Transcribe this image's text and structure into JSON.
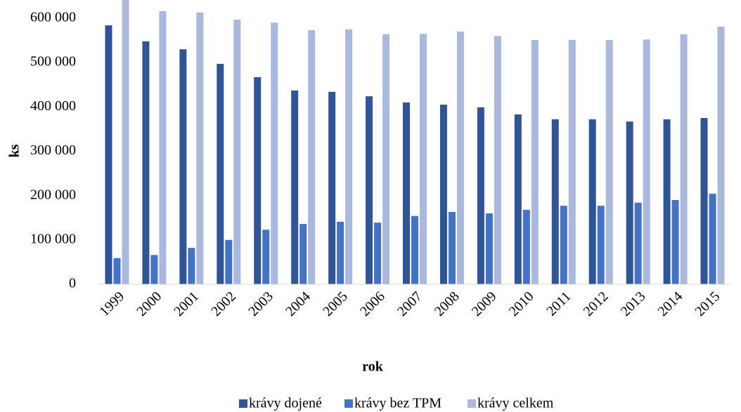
{
  "chart_data": {
    "type": "bar",
    "categories": [
      "1999",
      "2000",
      "2001",
      "2002",
      "2003",
      "2004",
      "2005",
      "2006",
      "2007",
      "2008",
      "2009",
      "2010",
      "2011",
      "2012",
      "2013",
      "2014",
      "2015"
    ],
    "series": [
      {
        "name": "krávy dojené",
        "color": "#2f5597",
        "values": [
          584000,
          548000,
          530000,
          497000,
          467000,
          437000,
          434000,
          424000,
          410000,
          405000,
          399000,
          383000,
          372000,
          372000,
          367000,
          372000,
          375000
        ]
      },
      {
        "name": "krávy bez TPM",
        "color": "#4472c4",
        "values": [
          59000,
          66000,
          82000,
          100000,
          123000,
          136000,
          141000,
          139000,
          154000,
          163000,
          160000,
          168000,
          177000,
          177000,
          184000,
          190000,
          204000
        ]
      },
      {
        "name": "krávy celkem",
        "color": "#a9b8dc",
        "values": [
          645000,
          616000,
          613000,
          597000,
          590000,
          573000,
          575000,
          564000,
          565000,
          570000,
          560000,
          551000,
          551000,
          551000,
          552000,
          564000,
          581000
        ]
      }
    ],
    "ylim": [
      0,
      700000
    ],
    "yticks": [
      0,
      {
        "value": 100000,
        "label": "100 000"
      },
      {
        "value": 200000,
        "label": "200 000"
      },
      {
        "value": 300000,
        "label": "300 000"
      },
      {
        "value": 400000,
        "label": "400 000"
      },
      {
        "value": 500000,
        "label": "500 000"
      },
      {
        "value": 600000,
        "label": "600 000"
      }
    ],
    "ylabel": "ks",
    "xlabel": "rok",
    "grid": false,
    "legend": "bottom"
  }
}
